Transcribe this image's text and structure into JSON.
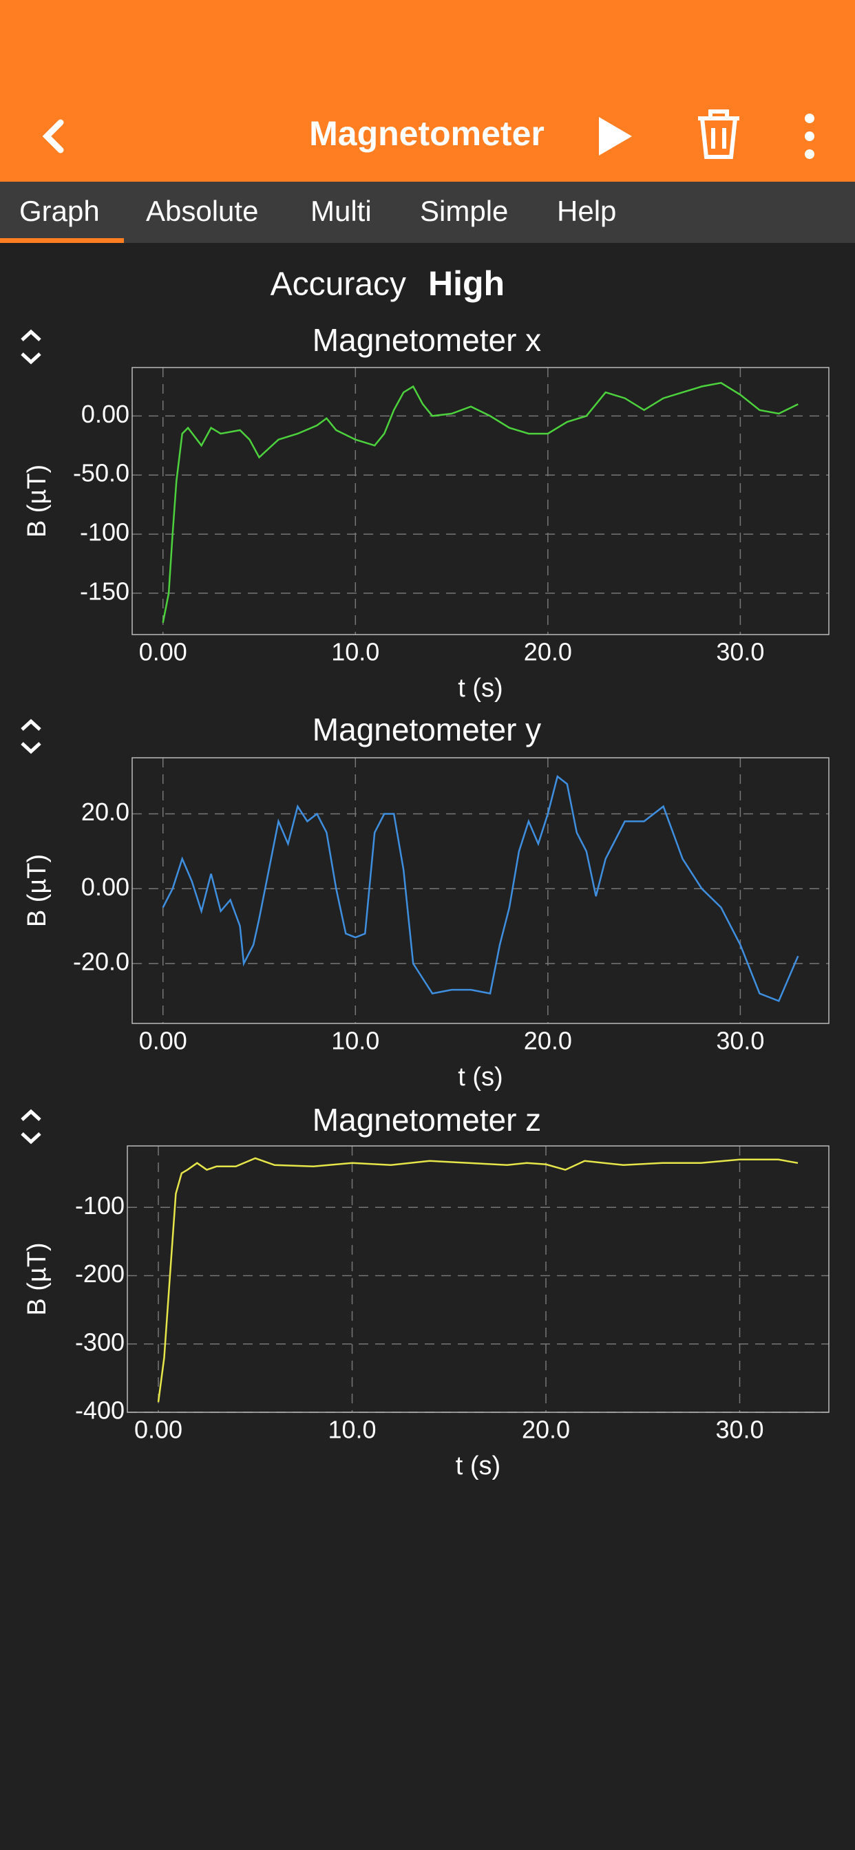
{
  "header": {
    "title": "Magnetometer"
  },
  "tabs": [
    "Graph",
    "Absolute",
    "Multi",
    "Simple",
    "Help"
  ],
  "accuracy": {
    "label": "Accuracy",
    "value": "High"
  },
  "chart_data": [
    {
      "type": "line",
      "title": "Magnetometer x",
      "x_label": "t (s)",
      "y_label": "B (µT)",
      "color": "#4cd23c",
      "grid": true,
      "xlim": [
        -1.6,
        34.6
      ],
      "ylim": [
        -185,
        41
      ],
      "xticks": [
        {
          "value": 0,
          "label": "0.00"
        },
        {
          "value": 10,
          "label": "10.0"
        },
        {
          "value": 20,
          "label": "20.0"
        },
        {
          "value": 30,
          "label": "30.0"
        }
      ],
      "yticks": [
        {
          "value": 0,
          "label": "0.00"
        },
        {
          "value": -50,
          "label": "-50.0"
        },
        -100,
        -150
      ],
      "x": [
        0,
        0.3,
        0.5,
        0.7,
        1,
        1.3,
        2,
        2.5,
        3,
        4,
        4.5,
        5,
        6,
        7,
        8,
        8.5,
        9,
        10,
        11,
        11.5,
        12,
        12.5,
        13,
        13.5,
        14,
        15,
        16,
        17,
        18,
        19,
        20,
        21,
        22,
        23,
        24,
        25,
        26,
        27,
        28,
        29,
        30,
        31,
        32,
        33
      ],
      "values": [
        -175,
        -150,
        -100,
        -55,
        -15,
        -10,
        -25,
        -10,
        -15,
        -12,
        -20,
        -35,
        -20,
        -15,
        -8,
        -2,
        -12,
        -20,
        -25,
        -15,
        5,
        20,
        25,
        10,
        0,
        2,
        8,
        0,
        -10,
        -15,
        -15,
        -5,
        0,
        20,
        15,
        5,
        15,
        20,
        25,
        28,
        18,
        5,
        2,
        10
      ]
    },
    {
      "type": "line",
      "title": "Magnetometer y",
      "x_label": "t (s)",
      "y_label": "B (µT)",
      "color": "#3f8fe0",
      "grid": true,
      "xlim": [
        -1.6,
        34.6
      ],
      "ylim": [
        -36,
        35
      ],
      "xticks": [
        {
          "value": 0,
          "label": "0.00"
        },
        {
          "value": 10,
          "label": "10.0"
        },
        {
          "value": 20,
          "label": "20.0"
        },
        {
          "value": 30,
          "label": "30.0"
        }
      ],
      "yticks": [
        {
          "value": 20,
          "label": "20.0"
        },
        {
          "value": 0,
          "label": "0.00"
        },
        {
          "value": -20,
          "label": "-20.0"
        }
      ],
      "x": [
        0,
        0.5,
        1,
        1.5,
        2,
        2.5,
        3,
        3.5,
        4,
        4.2,
        4.7,
        5,
        5.5,
        6,
        6.5,
        7,
        7.5,
        8,
        8.5,
        9,
        9.5,
        10,
        10.5,
        11,
        11.5,
        12,
        12.5,
        13,
        14,
        15,
        16,
        17,
        17.5,
        18,
        18.5,
        19,
        19.5,
        20,
        20.5,
        21,
        21.5,
        22,
        22.5,
        23,
        24,
        25,
        26,
        26.5,
        27,
        28,
        29,
        30,
        31,
        32,
        33
      ],
      "values": [
        -5,
        0,
        8,
        2,
        -6,
        4,
        -6,
        -3,
        -10,
        -20,
        -15,
        -8,
        5,
        18,
        12,
        22,
        18,
        20,
        15,
        0,
        -12,
        -13,
        -12,
        15,
        20,
        20,
        5,
        -20,
        -28,
        -27,
        -27,
        -28,
        -15,
        -5,
        10,
        18,
        12,
        20,
        30,
        28,
        15,
        10,
        -2,
        8,
        18,
        18,
        22,
        15,
        8,
        0,
        -5,
        -15,
        -28,
        -30,
        -18
      ]
    },
    {
      "type": "line",
      "title": "Magnetometer z",
      "x_label": "t (s)",
      "y_label": "B (µT)",
      "color": "#e6e64a",
      "grid": true,
      "xlim": [
        -1.6,
        34.6
      ],
      "ylim": [
        -400,
        -10
      ],
      "xticks": [
        {
          "value": 0,
          "label": "0.00"
        },
        {
          "value": 10,
          "label": "10.0"
        },
        {
          "value": 20,
          "label": "20.0"
        },
        {
          "value": 30,
          "label": "30.0"
        }
      ],
      "yticks": [
        -100,
        -200,
        -300,
        -400
      ],
      "x": [
        0,
        0.3,
        0.6,
        0.9,
        1.2,
        1.5,
        2,
        2.5,
        3,
        4,
        5,
        6,
        8,
        10,
        12,
        14,
        16,
        18,
        19,
        20,
        21,
        22,
        24,
        26,
        28,
        30,
        31,
        32,
        33
      ],
      "values": [
        -385,
        -320,
        -200,
        -80,
        -50,
        -45,
        -35,
        -45,
        -40,
        -40,
        -28,
        -38,
        -40,
        -35,
        -38,
        -32,
        -35,
        -38,
        -35,
        -37,
        -45,
        -32,
        -38,
        -35,
        -35,
        -30,
        -30,
        -30,
        -35
      ]
    }
  ]
}
